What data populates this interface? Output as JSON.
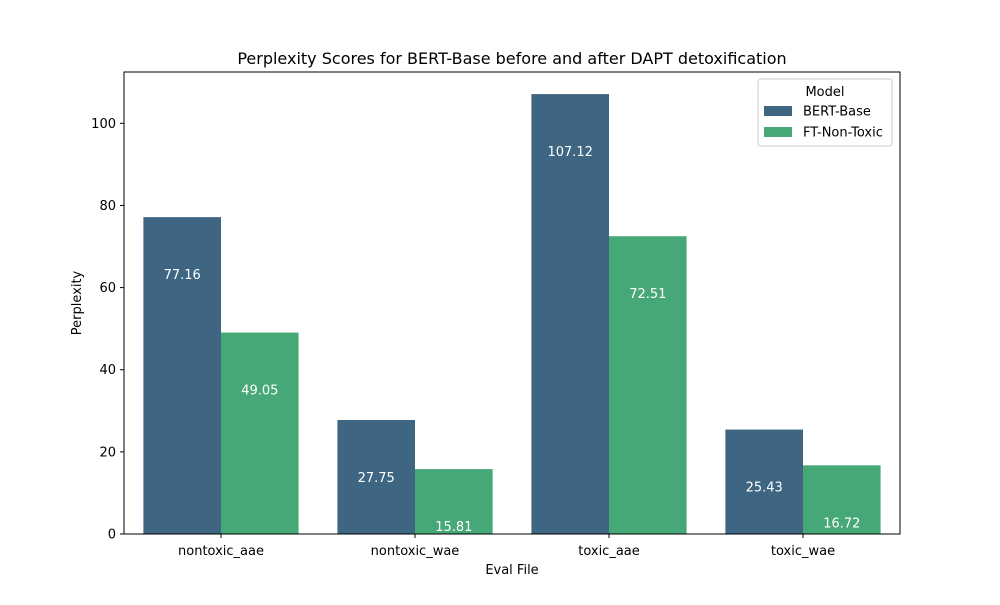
{
  "chart_data": {
    "type": "bar",
    "title": "Perplexity Scores for BERT-Base before and after DAPT detoxification",
    "xlabel": "Eval File",
    "ylabel": "Perplexity",
    "categories": [
      "nontoxic_aae",
      "nontoxic_wae",
      "toxic_aae",
      "toxic_wae"
    ],
    "series": [
      {
        "name": "BERT-Base",
        "values": [
          77.16,
          27.75,
          107.12,
          25.43
        ],
        "color": "#3e6582"
      },
      {
        "name": "FT-Non-Toxic",
        "values": [
          49.05,
          15.81,
          72.51,
          16.72
        ],
        "color": "#45a876"
      }
    ],
    "ylim": [
      0,
      112.5
    ],
    "yticks": [
      0,
      20,
      40,
      60,
      80,
      100
    ],
    "legend": {
      "title": "Model",
      "placement": "top-right"
    },
    "grid": false
  }
}
